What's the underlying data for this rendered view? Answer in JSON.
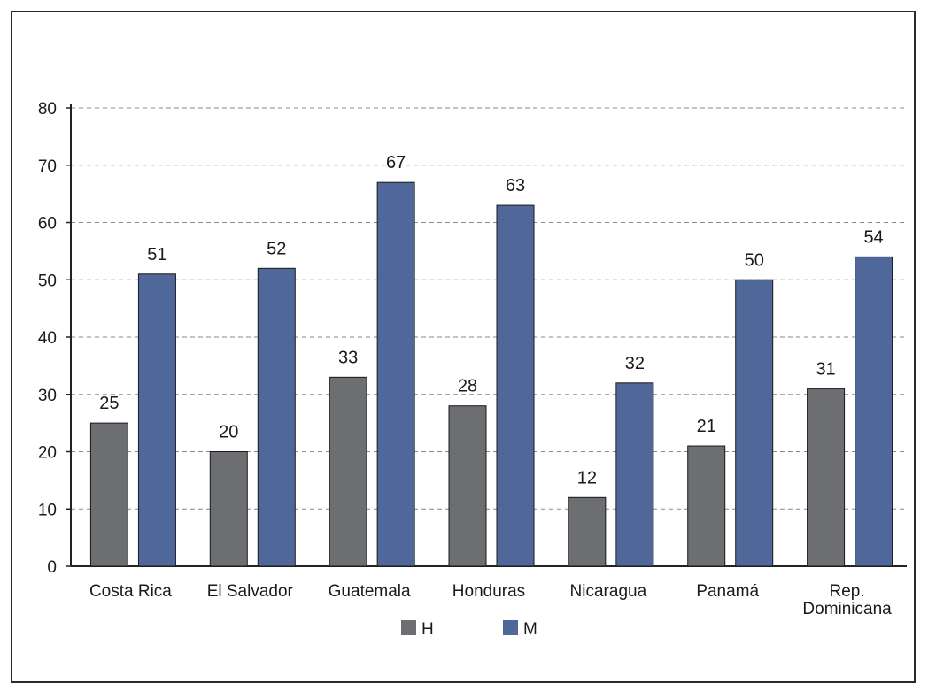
{
  "chart_data": {
    "type": "bar",
    "title": "",
    "xlabel": "",
    "ylabel": "",
    "ylim": [
      0,
      80
    ],
    "yticks": [
      "0",
      "10",
      "20",
      "30",
      "40",
      "50",
      "60",
      "70",
      "80"
    ],
    "grid": true,
    "legend_position": "bottom",
    "categories": [
      [
        "Costa Rica"
      ],
      [
        "El Salvador"
      ],
      [
        "Guatemala"
      ],
      [
        "Honduras"
      ],
      [
        "Nicaragua"
      ],
      [
        "Panamá"
      ],
      [
        "Rep.",
        "Dominicana"
      ]
    ],
    "series": [
      {
        "name": "H",
        "color": "#6d6e71",
        "values": [
          25,
          20,
          33,
          28,
          12,
          21,
          31
        ]
      },
      {
        "name": "M",
        "color": "#4f6899",
        "values": [
          51,
          52,
          67,
          63,
          32,
          50,
          54
        ]
      }
    ]
  }
}
